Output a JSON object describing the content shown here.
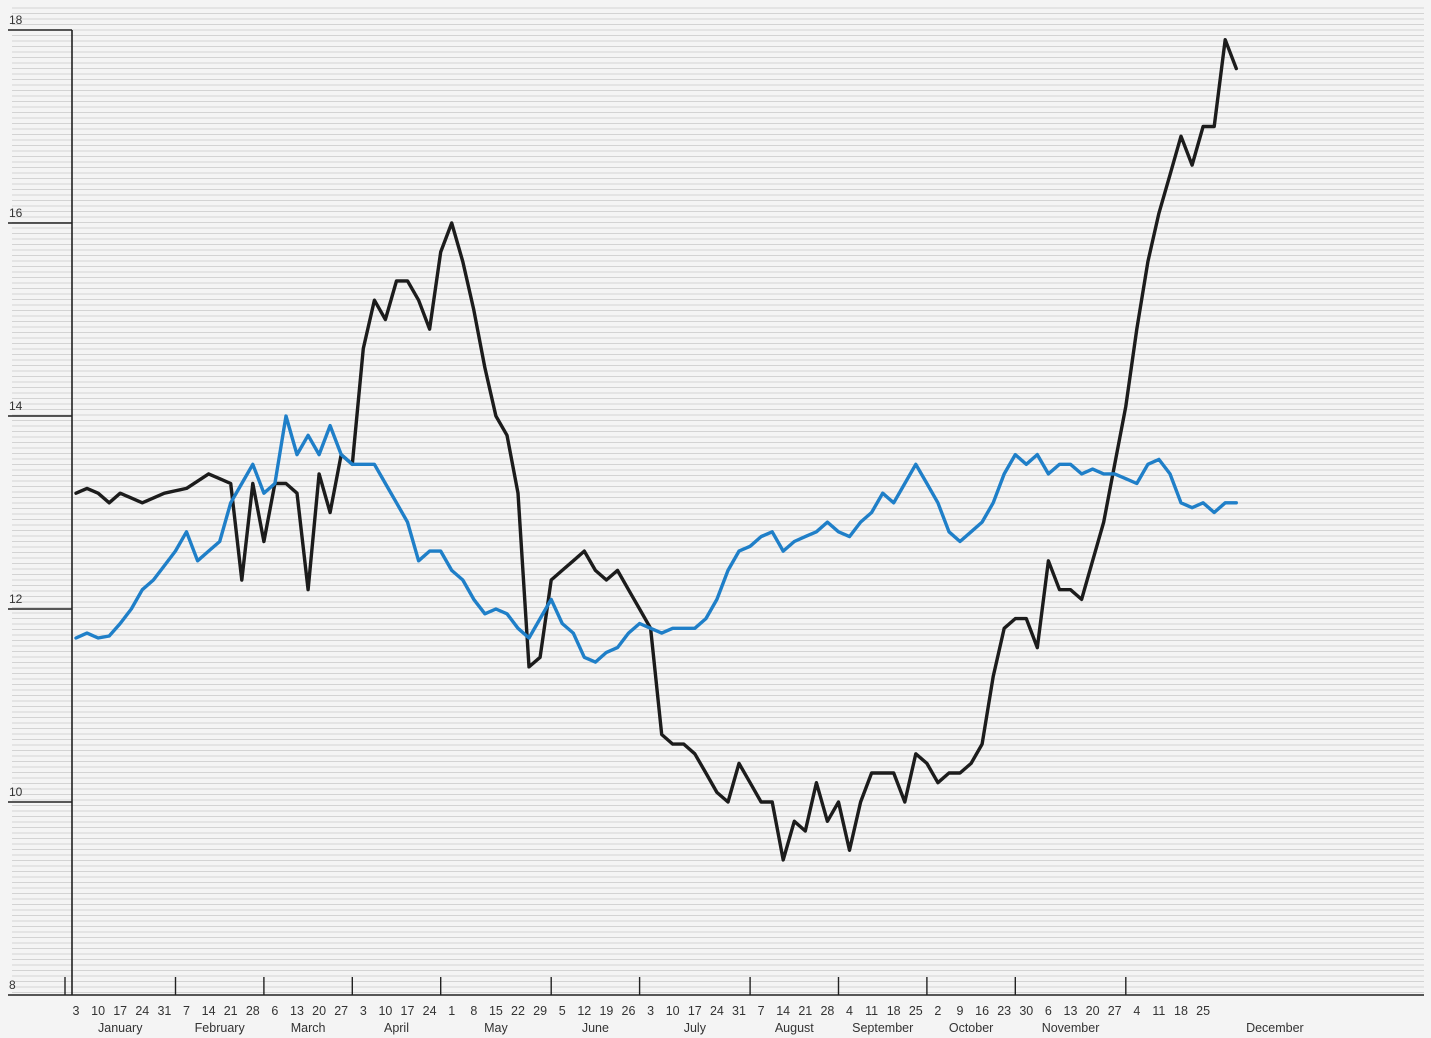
{
  "chart_data": {
    "type": "line",
    "title": "",
    "xlabel": "",
    "ylabel": "",
    "ylim": [
      8,
      18
    ],
    "grid": true,
    "y_ticks": [
      {
        "value": 18,
        "label": "18"
      },
      {
        "value": 16,
        "label": "16"
      },
      {
        "value": 14,
        "label": "14"
      },
      {
        "value": 12,
        "label": "12"
      },
      {
        "value": 10,
        "label": "10"
      },
      {
        "value": 8,
        "label": "8"
      }
    ],
    "week_ticks": [
      "3",
      "10",
      "17",
      "24",
      "31",
      "7",
      "14",
      "21",
      "28",
      "6",
      "13",
      "20",
      "27",
      "3",
      "10",
      "17",
      "24",
      "1",
      "8",
      "15",
      "22",
      "29",
      "5",
      "12",
      "19",
      "26",
      "3",
      "10",
      "17",
      "24",
      "31",
      "7",
      "14",
      "21",
      "28",
      "4",
      "11",
      "18",
      "25",
      "2",
      "9",
      "16",
      "23",
      "30",
      "6",
      "13",
      "20",
      "27",
      "4",
      "11",
      "18",
      "25"
    ],
    "months": [
      {
        "label": "January",
        "first_week": 0
      },
      {
        "label": "February",
        "first_week": 5
      },
      {
        "label": "March",
        "first_week": 9
      },
      {
        "label": "April",
        "first_week": 13
      },
      {
        "label": "May",
        "first_week": 17
      },
      {
        "label": "June",
        "first_week": 22
      },
      {
        "label": "July",
        "first_week": 26
      },
      {
        "label": "August",
        "first_week": 31
      },
      {
        "label": "September",
        "first_week": 35
      },
      {
        "label": "October",
        "first_week": 39
      },
      {
        "label": "November",
        "first_week": 43
      },
      {
        "label": "December",
        "first_week": 48
      }
    ],
    "series": [
      {
        "color": "#1c1c1c",
        "points": [
          [
            0,
            13.2
          ],
          [
            0.5,
            13.25
          ],
          [
            1,
            13.2
          ],
          [
            1.5,
            13.1
          ],
          [
            2,
            13.2
          ],
          [
            3,
            13.1
          ],
          [
            4,
            13.2
          ],
          [
            5,
            13.25
          ],
          [
            6,
            13.4
          ],
          [
            6.5,
            13.35
          ],
          [
            7,
            13.3
          ],
          [
            7.5,
            12.3
          ],
          [
            8,
            13.3
          ],
          [
            8.5,
            12.7
          ],
          [
            9,
            13.3
          ],
          [
            9.5,
            13.3
          ],
          [
            10,
            13.2
          ],
          [
            10.5,
            12.2
          ],
          [
            11,
            13.4
          ],
          [
            11.5,
            13.0
          ],
          [
            12,
            13.6
          ],
          [
            12.5,
            13.5
          ],
          [
            13,
            14.7
          ],
          [
            13.5,
            15.2
          ],
          [
            14,
            15.0
          ],
          [
            14.5,
            15.4
          ],
          [
            15,
            15.4
          ],
          [
            15.5,
            15.2
          ],
          [
            16,
            14.9
          ],
          [
            16.5,
            15.7
          ],
          [
            17,
            16.0
          ],
          [
            17.5,
            15.6
          ],
          [
            18,
            15.1
          ],
          [
            18.5,
            14.5
          ],
          [
            19,
            14.0
          ],
          [
            19.5,
            13.8
          ],
          [
            20,
            13.2
          ],
          [
            20.5,
            11.4
          ],
          [
            21,
            11.5
          ],
          [
            21.5,
            12.3
          ],
          [
            22,
            12.4
          ],
          [
            22.5,
            12.5
          ],
          [
            23,
            12.6
          ],
          [
            23.5,
            12.4
          ],
          [
            24,
            12.3
          ],
          [
            24.5,
            12.4
          ],
          [
            25,
            12.2
          ],
          [
            25.5,
            12.0
          ],
          [
            26,
            11.8
          ],
          [
            26.5,
            10.7
          ],
          [
            27,
            10.6
          ],
          [
            27.5,
            10.6
          ],
          [
            28,
            10.5
          ],
          [
            28.5,
            10.3
          ],
          [
            29,
            10.1
          ],
          [
            29.5,
            10.0
          ],
          [
            30,
            10.4
          ],
          [
            30.5,
            10.2
          ],
          [
            31,
            10.0
          ],
          [
            31.5,
            10.0
          ],
          [
            32,
            9.4
          ],
          [
            32.5,
            9.8
          ],
          [
            33,
            9.7
          ],
          [
            33.5,
            10.2
          ],
          [
            34,
            9.8
          ],
          [
            34.5,
            10.0
          ],
          [
            35,
            9.5
          ],
          [
            35.5,
            10.0
          ],
          [
            36,
            10.3
          ],
          [
            36.5,
            10.3
          ],
          [
            37,
            10.3
          ],
          [
            37.5,
            10.0
          ],
          [
            38,
            10.5
          ],
          [
            38.5,
            10.4
          ],
          [
            39,
            10.2
          ],
          [
            39.5,
            10.3
          ],
          [
            40,
            10.3
          ],
          [
            40.5,
            10.4
          ],
          [
            41,
            10.6
          ],
          [
            41.5,
            11.3
          ],
          [
            42,
            11.8
          ],
          [
            42.5,
            11.9
          ],
          [
            43,
            11.9
          ],
          [
            43.5,
            11.6
          ],
          [
            44,
            12.5
          ],
          [
            44.5,
            12.2
          ],
          [
            45,
            12.2
          ],
          [
            45.5,
            12.1
          ],
          [
            46,
            12.5
          ],
          [
            46.5,
            12.9
          ],
          [
            47,
            13.5
          ],
          [
            47.5,
            14.1
          ],
          [
            48,
            14.9
          ],
          [
            48.5,
            15.6
          ],
          [
            49,
            16.1
          ],
          [
            49.5,
            16.5
          ],
          [
            50,
            16.9
          ],
          [
            50.5,
            16.6
          ],
          [
            51,
            17.0
          ],
          [
            51.5,
            17.0
          ],
          [
            52,
            17.9
          ],
          [
            52.5,
            17.6
          ]
        ]
      },
      {
        "color": "#1f7fc8",
        "points": [
          [
            0,
            11.7
          ],
          [
            0.5,
            11.75
          ],
          [
            1,
            11.7
          ],
          [
            1.5,
            11.72
          ],
          [
            2,
            11.85
          ],
          [
            2.5,
            12.0
          ],
          [
            3,
            12.2
          ],
          [
            3.5,
            12.3
          ],
          [
            4,
            12.45
          ],
          [
            4.5,
            12.6
          ],
          [
            5,
            12.8
          ],
          [
            5.5,
            12.5
          ],
          [
            6,
            12.6
          ],
          [
            6.5,
            12.7
          ],
          [
            7,
            13.1
          ],
          [
            7.5,
            13.3
          ],
          [
            8,
            13.5
          ],
          [
            8.5,
            13.2
          ],
          [
            9,
            13.3
          ],
          [
            9.5,
            14.0
          ],
          [
            10,
            13.6
          ],
          [
            10.5,
            13.8
          ],
          [
            11,
            13.6
          ],
          [
            11.5,
            13.9
          ],
          [
            12,
            13.6
          ],
          [
            12.5,
            13.5
          ],
          [
            13,
            13.5
          ],
          [
            13.5,
            13.5
          ],
          [
            14,
            13.3
          ],
          [
            14.5,
            13.1
          ],
          [
            15,
            12.9
          ],
          [
            15.5,
            12.5
          ],
          [
            16,
            12.6
          ],
          [
            16.5,
            12.6
          ],
          [
            17,
            12.4
          ],
          [
            17.5,
            12.3
          ],
          [
            18,
            12.1
          ],
          [
            18.5,
            11.95
          ],
          [
            19,
            12.0
          ],
          [
            19.5,
            11.95
          ],
          [
            20,
            11.8
          ],
          [
            20.5,
            11.7
          ],
          [
            21,
            11.9
          ],
          [
            21.5,
            12.1
          ],
          [
            22,
            11.85
          ],
          [
            22.5,
            11.75
          ],
          [
            23,
            11.5
          ],
          [
            23.5,
            11.45
          ],
          [
            24,
            11.55
          ],
          [
            24.5,
            11.6
          ],
          [
            25,
            11.75
          ],
          [
            25.5,
            11.85
          ],
          [
            26,
            11.8
          ],
          [
            26.5,
            11.75
          ],
          [
            27,
            11.8
          ],
          [
            27.5,
            11.8
          ],
          [
            28,
            11.8
          ],
          [
            28.5,
            11.9
          ],
          [
            29,
            12.1
          ],
          [
            29.5,
            12.4
          ],
          [
            30,
            12.6
          ],
          [
            30.5,
            12.65
          ],
          [
            31,
            12.75
          ],
          [
            31.5,
            12.8
          ],
          [
            32,
            12.6
          ],
          [
            32.5,
            12.7
          ],
          [
            33,
            12.75
          ],
          [
            33.5,
            12.8
          ],
          [
            34,
            12.9
          ],
          [
            34.5,
            12.8
          ],
          [
            35,
            12.75
          ],
          [
            35.5,
            12.9
          ],
          [
            36,
            13.0
          ],
          [
            36.5,
            13.2
          ],
          [
            37,
            13.1
          ],
          [
            37.5,
            13.3
          ],
          [
            38,
            13.5
          ],
          [
            38.5,
            13.3
          ],
          [
            39,
            13.1
          ],
          [
            39.5,
            12.8
          ],
          [
            40,
            12.7
          ],
          [
            40.5,
            12.8
          ],
          [
            41,
            12.9
          ],
          [
            41.5,
            13.1
          ],
          [
            42,
            13.4
          ],
          [
            42.5,
            13.6
          ],
          [
            43,
            13.5
          ],
          [
            43.5,
            13.6
          ],
          [
            44,
            13.4
          ],
          [
            44.5,
            13.5
          ],
          [
            45,
            13.5
          ],
          [
            45.5,
            13.4
          ],
          [
            46,
            13.45
          ],
          [
            46.5,
            13.4
          ],
          [
            47,
            13.4
          ],
          [
            47.5,
            13.35
          ],
          [
            48,
            13.3
          ],
          [
            48.5,
            13.5
          ],
          [
            49,
            13.55
          ],
          [
            49.5,
            13.4
          ],
          [
            50,
            13.1
          ],
          [
            50.5,
            13.05
          ],
          [
            51,
            13.1
          ],
          [
            51.5,
            13.0
          ],
          [
            52,
            13.1
          ],
          [
            52.5,
            13.1
          ]
        ]
      }
    ]
  }
}
